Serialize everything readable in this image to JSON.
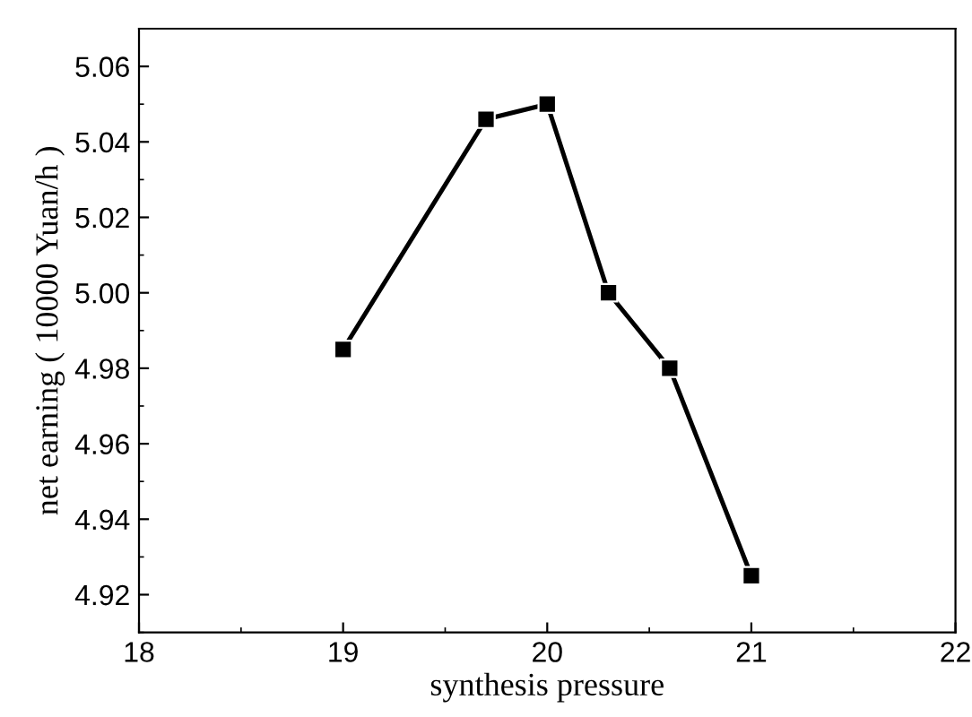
{
  "chart_data": {
    "type": "line",
    "xlabel": "synthesis pressure",
    "ylabel": "net earning ( 10000 Yuan/h )",
    "x": [
      19,
      19.7,
      20,
      20.3,
      20.6,
      21
    ],
    "series": [
      {
        "color": "#000000",
        "values": [
          4.985,
          5.046,
          5.05,
          5.0,
          4.98,
          4.925
        ]
      }
    ],
    "xlim": [
      18,
      22
    ],
    "xticks": [
      18,
      19,
      20,
      21,
      22
    ],
    "ylim": [
      4.91,
      5.07
    ],
    "yticks": [
      {
        "value": 4.92,
        "label": "4.92"
      },
      {
        "value": 4.94,
        "label": "4.94"
      },
      {
        "value": 4.96,
        "label": "4.96"
      },
      {
        "value": 4.98,
        "label": "4.98"
      },
      {
        "value": 5.0,
        "label": "5.00"
      },
      {
        "value": 5.02,
        "label": "5.02"
      },
      {
        "value": 5.04,
        "label": "5.04"
      },
      {
        "value": 5.06,
        "label": "5.06"
      }
    ],
    "marker": "square",
    "line_style": "solid",
    "grid": false,
    "legend": false
  }
}
